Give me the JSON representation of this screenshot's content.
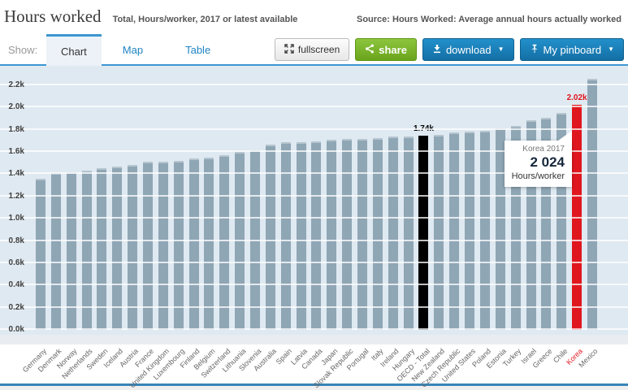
{
  "header": {
    "title": "Hours worked",
    "subtitle": "Total, Hours/worker, 2017 or latest available",
    "source": "Source: Hours Worked: Average annual hours actually worked"
  },
  "toolbar": {
    "show_label": "Show:",
    "tabs": [
      {
        "label": "Chart",
        "active": true
      },
      {
        "label": "Map",
        "active": false
      },
      {
        "label": "Table",
        "active": false
      }
    ],
    "buttons": {
      "fullscreen": "fullscreen",
      "share": "share",
      "download": "download",
      "pinboard": "My pinboard"
    }
  },
  "tooltip": {
    "title": "Korea 2017",
    "value": "2 024",
    "unit": "Hours/worker"
  },
  "colors": {
    "accent_blue": "#3d96d2",
    "button_blue": "#1b7db8",
    "share_green": "#79b82a",
    "chart_bg": "#dfe9f1",
    "bar_default": "#8fa6b5",
    "bar_black": "#000000",
    "bar_red": "#e0161f"
  },
  "chart_data": {
    "type": "bar",
    "title": "Hours worked",
    "xlabel": "",
    "ylabel": "Hours/worker",
    "ylim": [
      0,
      2200
    ],
    "ytick_step": 200,
    "ytick_labels": [
      "0.0k",
      "0.2k",
      "0.4k",
      "0.6k",
      "0.8k",
      "1.0k",
      "1.2k",
      "1.4k",
      "1.6k",
      "1.8k",
      "2.0k",
      "2.2k"
    ],
    "grid": true,
    "legend": false,
    "categories": [
      "Germany",
      "Denmark",
      "Norway",
      "Netherlands",
      "Sweden",
      "Iceland",
      "Austria",
      "France",
      "United Kingdom",
      "Luxembourg",
      "Finland",
      "Belgium",
      "Switzerland",
      "Lithuania",
      "Slovenia",
      "Australia",
      "Spain",
      "Latvia",
      "Canada",
      "Japan",
      "Slovak Republic",
      "Portugal",
      "Italy",
      "Ireland",
      "Hungary",
      "OECD - Total",
      "New Zealand",
      "Czech Republic",
      "United States",
      "Poland",
      "Estonia",
      "Turkey",
      "Israel",
      "Greece",
      "Chile",
      "Korea",
      "Mexico"
    ],
    "values": [
      1356,
      1408,
      1419,
      1433,
      1453,
      1469,
      1487,
      1514,
      1514,
      1518,
      1540,
      1546,
      1570,
      1604,
      1615,
      1669,
      1687,
      1692,
      1695,
      1710,
      1714,
      1720,
      1723,
      1738,
      1740,
      1744,
      1753,
      1776,
      1780,
      1792,
      1815,
      1832,
      1885,
      1906,
      1954,
      2024,
      2257
    ],
    "bar_color_overrides": {
      "OECD - Total": "#000000",
      "Korea": "#e0161f"
    },
    "xlabel_color_overrides": {
      "Korea": "#e0161f"
    },
    "annotations": [
      {
        "category": "OECD - Total",
        "text": "1.74k",
        "color": "#000000"
      },
      {
        "category": "Korea",
        "text": "2.02k",
        "color": "#e0161f"
      }
    ]
  }
}
